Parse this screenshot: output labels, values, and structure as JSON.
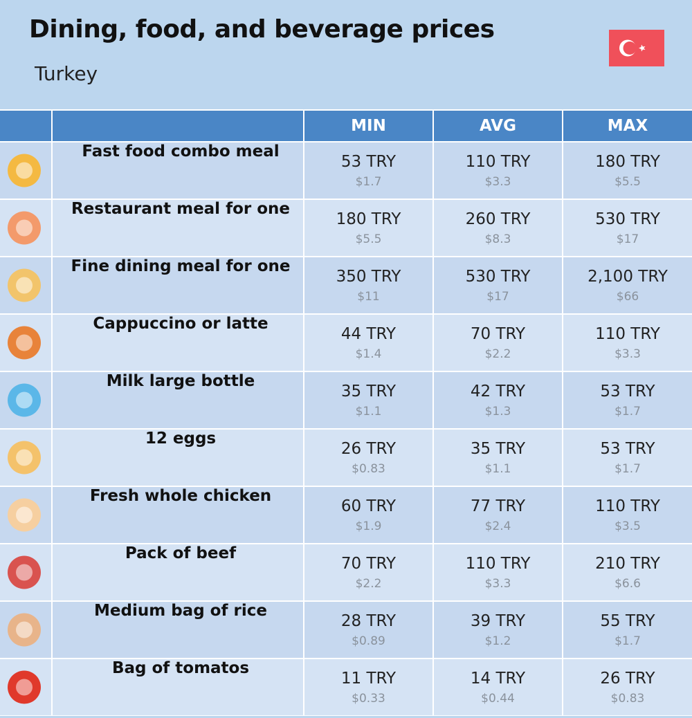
{
  "header": {
    "title": "Dining, food, and beverage prices",
    "subtitle": "Turkey"
  },
  "table": {
    "columns": [
      "MIN",
      "AVG",
      "MAX"
    ],
    "rows": [
      {
        "name": "Fast food combo meal",
        "min": {
          "local": "53 TRY",
          "usd": "$1.7"
        },
        "avg": {
          "local": "110 TRY",
          "usd": "$3.3"
        },
        "max": {
          "local": "180 TRY",
          "usd": "$5.5"
        }
      },
      {
        "name": "Restaurant meal for one",
        "min": {
          "local": "180 TRY",
          "usd": "$5.5"
        },
        "avg": {
          "local": "260 TRY",
          "usd": "$8.3"
        },
        "max": {
          "local": "530 TRY",
          "usd": "$17"
        }
      },
      {
        "name": "Fine dining meal for one",
        "min": {
          "local": "350 TRY",
          "usd": "$11"
        },
        "avg": {
          "local": "530 TRY",
          "usd": "$17"
        },
        "max": {
          "local": "2,100 TRY",
          "usd": "$66"
        }
      },
      {
        "name": "Cappuccino or latte",
        "min": {
          "local": "44 TRY",
          "usd": "$1.4"
        },
        "avg": {
          "local": "70 TRY",
          "usd": "$2.2"
        },
        "max": {
          "local": "110 TRY",
          "usd": "$3.3"
        }
      },
      {
        "name": "Milk large bottle",
        "min": {
          "local": "35 TRY",
          "usd": "$1.1"
        },
        "avg": {
          "local": "42 TRY",
          "usd": "$1.3"
        },
        "max": {
          "local": "53 TRY",
          "usd": "$1.7"
        }
      },
      {
        "name": "12 eggs",
        "min": {
          "local": "26 TRY",
          "usd": "$0.83"
        },
        "avg": {
          "local": "35 TRY",
          "usd": "$1.1"
        },
        "max": {
          "local": "53 TRY",
          "usd": "$1.7"
        }
      },
      {
        "name": "Fresh whole chicken",
        "min": {
          "local": "60 TRY",
          "usd": "$1.9"
        },
        "avg": {
          "local": "77 TRY",
          "usd": "$2.4"
        },
        "max": {
          "local": "110 TRY",
          "usd": "$3.5"
        }
      },
      {
        "name": "Pack of beef",
        "min": {
          "local": "70 TRY",
          "usd": "$2.2"
        },
        "avg": {
          "local": "110 TRY",
          "usd": "$3.3"
        },
        "max": {
          "local": "210 TRY",
          "usd": "$6.6"
        }
      },
      {
        "name": "Medium bag of rice",
        "min": {
          "local": "28 TRY",
          "usd": "$0.89"
        },
        "avg": {
          "local": "39 TRY",
          "usd": "$1.2"
        },
        "max": {
          "local": "55 TRY",
          "usd": "$1.7"
        }
      },
      {
        "name": "Bag of tomatos",
        "min": {
          "local": "11 TRY",
          "usd": "$0.33"
        },
        "avg": {
          "local": "14 TRY",
          "usd": "$0.44"
        },
        "max": {
          "local": "26 TRY",
          "usd": "$0.83"
        }
      }
    ]
  }
}
